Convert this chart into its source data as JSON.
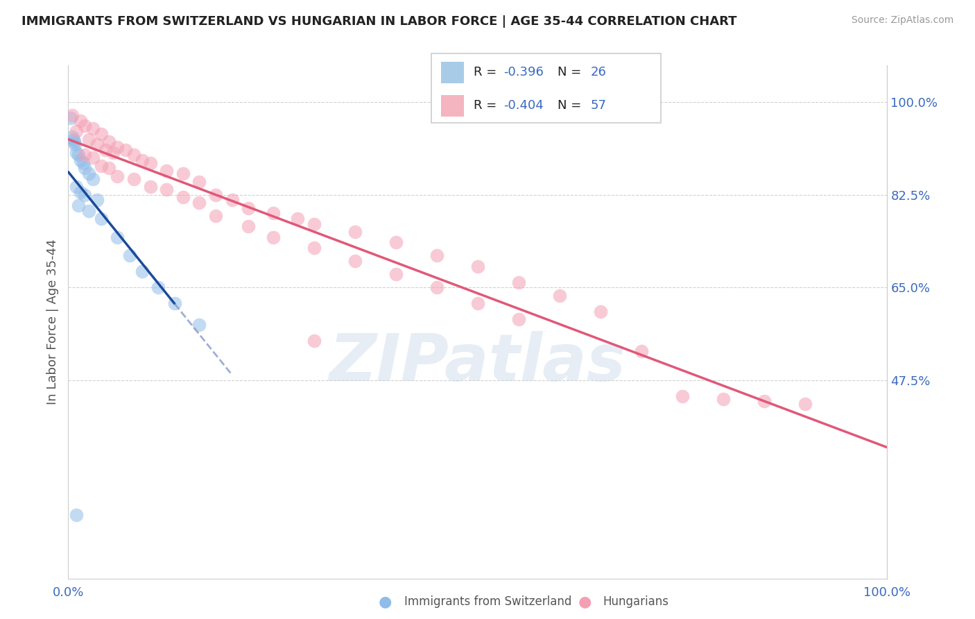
{
  "title": "IMMIGRANTS FROM SWITZERLAND VS HUNGARIAN IN LABOR FORCE | AGE 35-44 CORRELATION CHART",
  "source": "Source: ZipAtlas.com",
  "ylabel": "In Labor Force | Age 35-44",
  "right_yticks": [
    47.5,
    65.0,
    82.5,
    100.0
  ],
  "swiss_color": "#90bce8",
  "hungarian_color": "#f4a0b4",
  "swiss_line_color": "#1a4a9a",
  "swiss_line_dash_color": "#8899cc",
  "hungarian_line_color": "#e05878",
  "swiss_r": "-0.396",
  "swiss_n": "26",
  "hung_r": "-0.404",
  "hung_n": "57",
  "swiss_legend_color": "#a8cce8",
  "hung_legend_color": "#f4b4c0",
  "swiss_points": [
    [
      0.3,
      97.0
    ],
    [
      0.5,
      93.5
    ],
    [
      0.6,
      93.0
    ],
    [
      0.7,
      92.5
    ],
    [
      0.8,
      92.0
    ],
    [
      1.0,
      90.5
    ],
    [
      1.2,
      90.0
    ],
    [
      1.5,
      89.0
    ],
    [
      1.8,
      88.5
    ],
    [
      2.0,
      87.5
    ],
    [
      2.5,
      86.5
    ],
    [
      3.0,
      85.5
    ],
    [
      1.0,
      84.0
    ],
    [
      1.5,
      83.0
    ],
    [
      2.0,
      82.5
    ],
    [
      3.5,
      81.5
    ],
    [
      1.2,
      80.5
    ],
    [
      2.5,
      79.5
    ],
    [
      4.0,
      78.0
    ],
    [
      6.0,
      74.5
    ],
    [
      7.5,
      71.0
    ],
    [
      9.0,
      68.0
    ],
    [
      11.0,
      65.0
    ],
    [
      13.0,
      62.0
    ],
    [
      16.0,
      58.0
    ],
    [
      1.0,
      22.0
    ]
  ],
  "hungarian_points": [
    [
      0.5,
      97.5
    ],
    [
      1.5,
      96.5
    ],
    [
      2.0,
      95.5
    ],
    [
      3.0,
      95.0
    ],
    [
      1.0,
      94.5
    ],
    [
      4.0,
      94.0
    ],
    [
      2.5,
      93.0
    ],
    [
      5.0,
      92.5
    ],
    [
      3.5,
      92.0
    ],
    [
      6.0,
      91.5
    ],
    [
      4.5,
      91.0
    ],
    [
      7.0,
      91.0
    ],
    [
      5.5,
      90.5
    ],
    [
      8.0,
      90.0
    ],
    [
      2.0,
      90.0
    ],
    [
      3.0,
      89.5
    ],
    [
      9.0,
      89.0
    ],
    [
      10.0,
      88.5
    ],
    [
      4.0,
      88.0
    ],
    [
      5.0,
      87.5
    ],
    [
      12.0,
      87.0
    ],
    [
      14.0,
      86.5
    ],
    [
      6.0,
      86.0
    ],
    [
      8.0,
      85.5
    ],
    [
      16.0,
      85.0
    ],
    [
      10.0,
      84.0
    ],
    [
      12.0,
      83.5
    ],
    [
      18.0,
      82.5
    ],
    [
      14.0,
      82.0
    ],
    [
      20.0,
      81.5
    ],
    [
      16.0,
      81.0
    ],
    [
      22.0,
      80.0
    ],
    [
      25.0,
      79.0
    ],
    [
      18.0,
      78.5
    ],
    [
      28.0,
      78.0
    ],
    [
      30.0,
      77.0
    ],
    [
      22.0,
      76.5
    ],
    [
      35.0,
      75.5
    ],
    [
      25.0,
      74.5
    ],
    [
      40.0,
      73.5
    ],
    [
      30.0,
      72.5
    ],
    [
      45.0,
      71.0
    ],
    [
      35.0,
      70.0
    ],
    [
      50.0,
      69.0
    ],
    [
      40.0,
      67.5
    ],
    [
      55.0,
      66.0
    ],
    [
      45.0,
      65.0
    ],
    [
      60.0,
      63.5
    ],
    [
      50.0,
      62.0
    ],
    [
      65.0,
      60.5
    ],
    [
      55.0,
      59.0
    ],
    [
      30.0,
      55.0
    ],
    [
      70.0,
      53.0
    ],
    [
      75.0,
      44.5
    ],
    [
      80.0,
      44.0
    ],
    [
      85.0,
      43.5
    ],
    [
      90.0,
      43.0
    ]
  ],
  "xmin": 0.0,
  "xmax": 100.0,
  "ymin": 10.0,
  "ymax": 107.0
}
